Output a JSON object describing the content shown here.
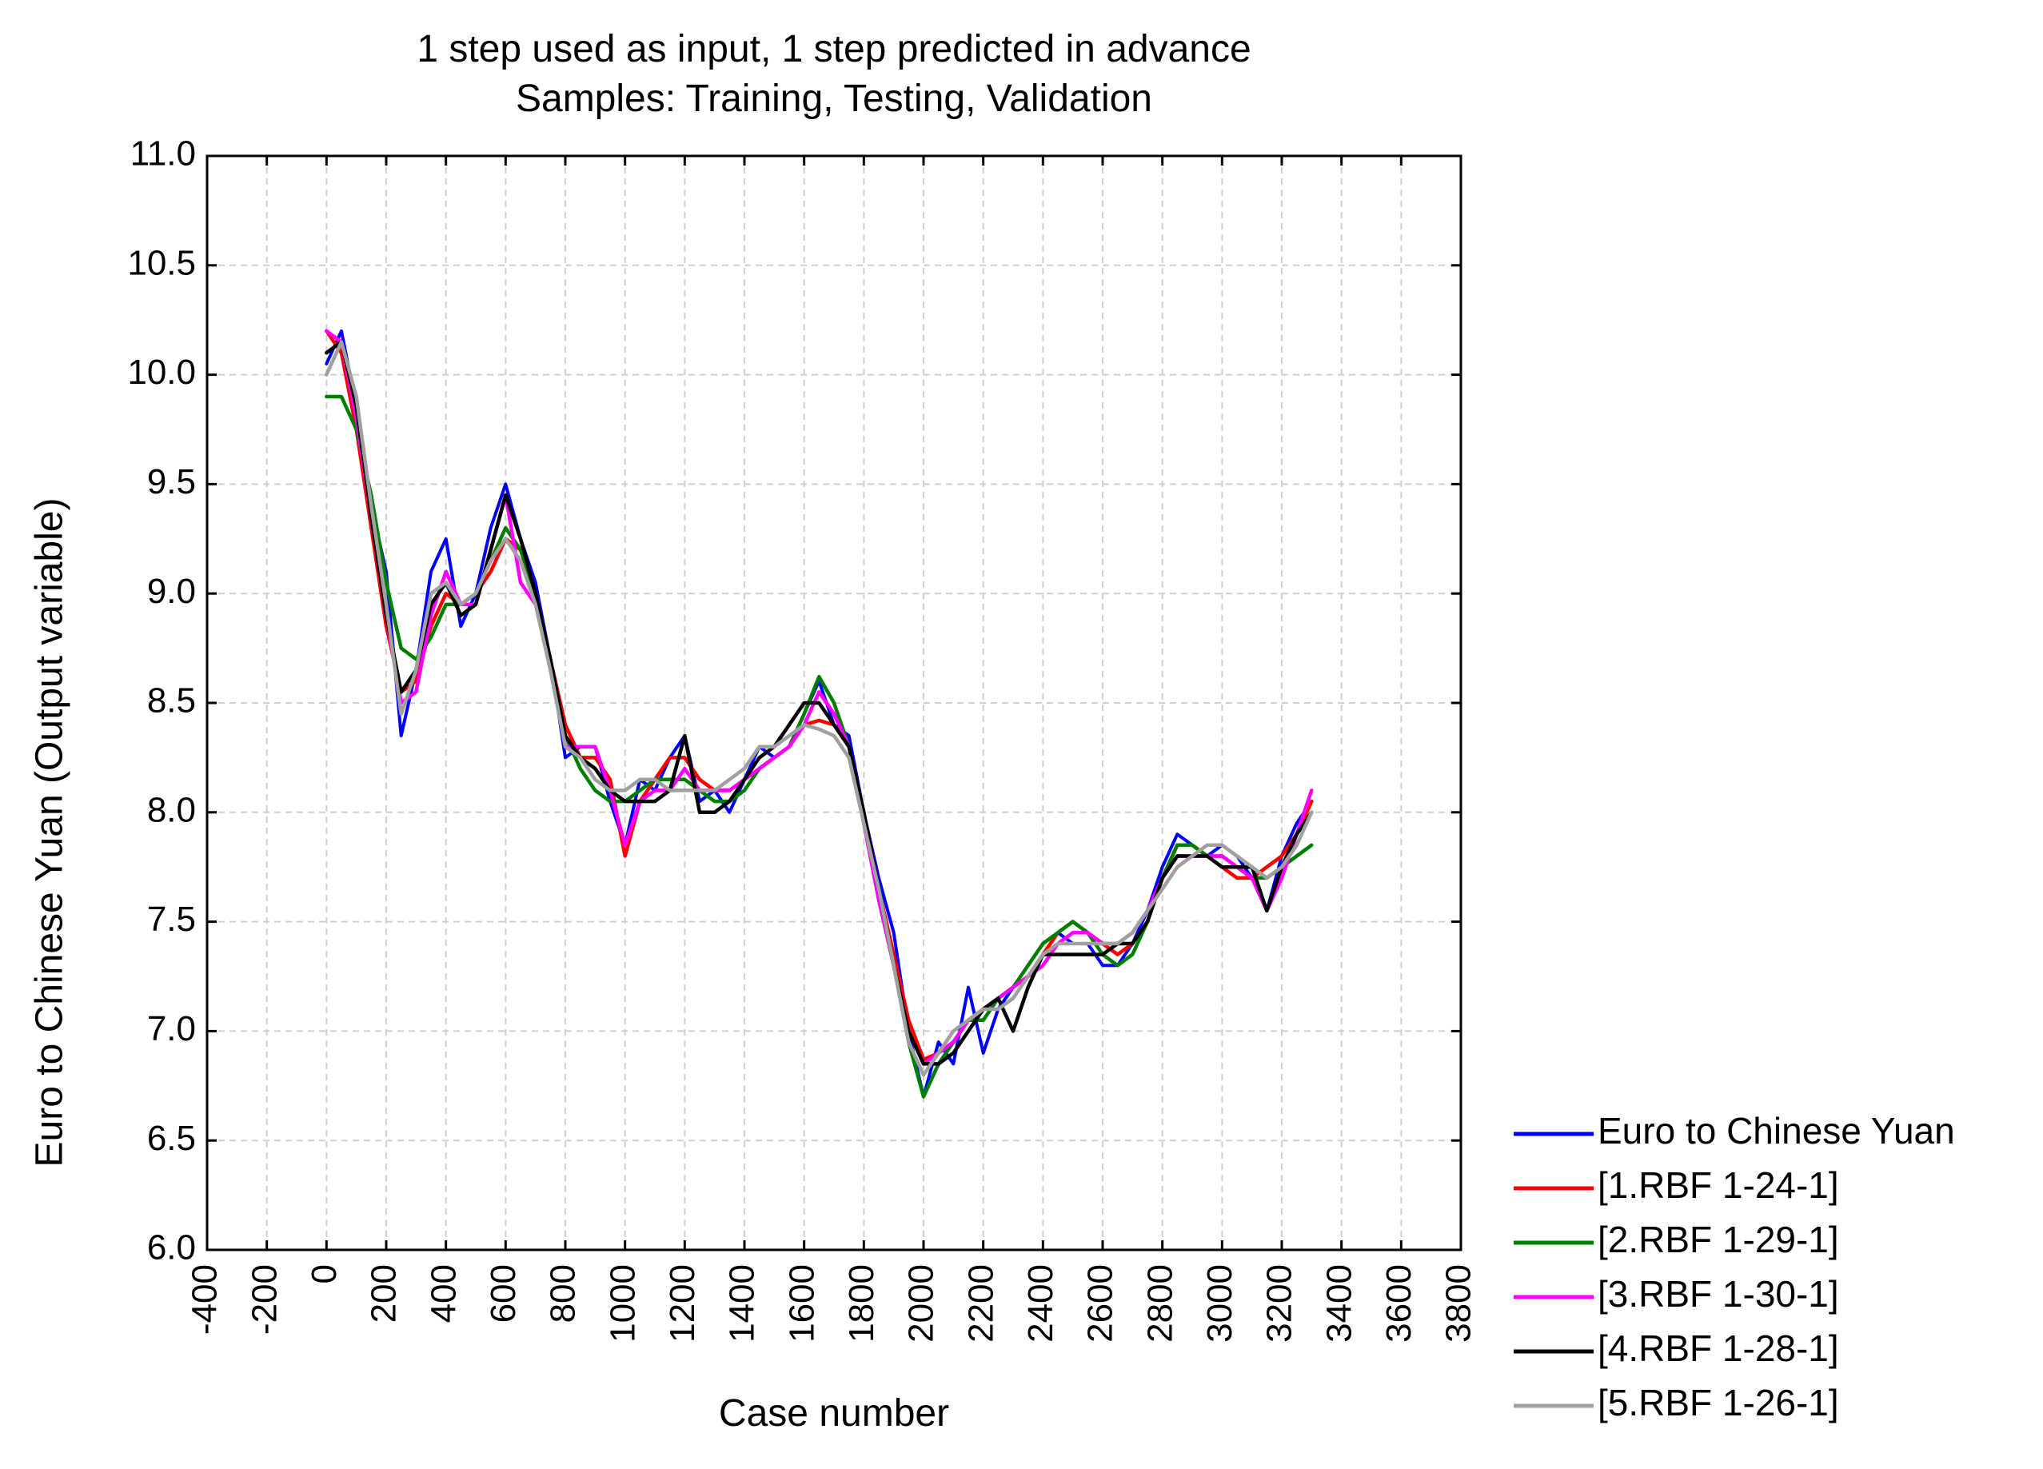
{
  "chart_data": {
    "type": "line",
    "title": "1 step used as input, 1 step predicted in advance",
    "subtitle": "Samples: Training, Testing, Validation",
    "xlabel": "Case number",
    "ylabel": "Euro to Chinese Yuan (Output variable)",
    "xlim": [
      -400,
      3800
    ],
    "ylim": [
      6.0,
      11.0
    ],
    "xticks": [
      "-400",
      "-200",
      "0",
      "200",
      "400",
      "600",
      "800",
      "1000",
      "1200",
      "1400",
      "1600",
      "1800",
      "2000",
      "2200",
      "2400",
      "2600",
      "2800",
      "3000",
      "3200",
      "3400",
      "3600",
      "3800"
    ],
    "yticks": [
      "6.0",
      "6.5",
      "7.0",
      "7.5",
      "8.0",
      "8.5",
      "9.0",
      "9.5",
      "10.0",
      "10.5",
      "11.0"
    ],
    "grid": true,
    "legend_position": "bottom-right, outside plot",
    "series": [
      {
        "name": "Euro to Chinese Yuan",
        "color": "#0000ff",
        "x": [
          0,
          50,
          100,
          150,
          200,
          250,
          300,
          350,
          400,
          450,
          500,
          550,
          600,
          650,
          700,
          750,
          800,
          850,
          900,
          950,
          1000,
          1050,
          1100,
          1150,
          1200,
          1250,
          1300,
          1350,
          1400,
          1450,
          1500,
          1550,
          1600,
          1650,
          1700,
          1750,
          1800,
          1850,
          1900,
          1950,
          2000,
          2050,
          2100,
          2150,
          2200,
          2250,
          2300,
          2350,
          2400,
          2450,
          2500,
          2550,
          2600,
          2650,
          2700,
          2750,
          2800,
          2850,
          2900,
          2950,
          3000,
          3050,
          3100,
          3150,
          3200,
          3250,
          3300
        ],
        "values": [
          10.05,
          10.2,
          9.85,
          9.4,
          9.1,
          8.35,
          8.65,
          9.1,
          9.25,
          8.85,
          9.0,
          9.3,
          9.5,
          9.25,
          9.05,
          8.7,
          8.25,
          8.3,
          8.3,
          8.05,
          7.85,
          8.15,
          8.1,
          8.25,
          8.35,
          8.05,
          8.1,
          8.0,
          8.15,
          8.3,
          8.25,
          8.3,
          8.45,
          8.6,
          8.4,
          8.35,
          8.0,
          7.7,
          7.45,
          7.0,
          6.7,
          6.95,
          6.85,
          7.2,
          6.9,
          7.1,
          7.2,
          7.3,
          7.4,
          7.45,
          7.4,
          7.4,
          7.3,
          7.3,
          7.4,
          7.55,
          7.75,
          7.9,
          7.85,
          7.8,
          7.85,
          7.8,
          7.7,
          7.55,
          7.8,
          7.95,
          8.05
        ]
      },
      {
        "name": "[1.RBF 1-24-1]",
        "color": "#ff0000",
        "x": [
          0,
          50,
          100,
          150,
          200,
          250,
          300,
          350,
          400,
          450,
          500,
          550,
          600,
          650,
          700,
          750,
          800,
          850,
          900,
          950,
          1000,
          1050,
          1100,
          1150,
          1200,
          1250,
          1300,
          1350,
          1400,
          1450,
          1500,
          1550,
          1600,
          1650,
          1700,
          1750,
          1800,
          1850,
          1900,
          1950,
          2000,
          2050,
          2100,
          2150,
          2200,
          2250,
          2300,
          2350,
          2400,
          2450,
          2500,
          2550,
          2600,
          2650,
          2700,
          2750,
          2800,
          2850,
          2900,
          2950,
          3000,
          3050,
          3100,
          3150,
          3200,
          3250,
          3300
        ],
        "values": [
          10.2,
          10.1,
          9.75,
          9.3,
          8.85,
          8.55,
          8.6,
          8.85,
          9.0,
          8.95,
          9.0,
          9.1,
          9.25,
          9.2,
          9.0,
          8.7,
          8.4,
          8.25,
          8.25,
          8.15,
          7.8,
          8.05,
          8.15,
          8.25,
          8.25,
          8.15,
          8.1,
          8.1,
          8.15,
          8.2,
          8.25,
          8.3,
          8.4,
          8.42,
          8.4,
          8.3,
          8.0,
          7.65,
          7.35,
          7.05,
          6.87,
          6.9,
          6.95,
          7.05,
          7.1,
          7.15,
          7.2,
          7.25,
          7.35,
          7.45,
          7.5,
          7.45,
          7.4,
          7.35,
          7.4,
          7.5,
          7.7,
          7.85,
          7.85,
          7.8,
          7.75,
          7.7,
          7.7,
          7.75,
          7.8,
          7.9,
          8.05
        ]
      },
      {
        "name": "[2.RBF 1-29-1]",
        "color": "#008000",
        "x": [
          0,
          50,
          100,
          150,
          200,
          250,
          300,
          350,
          400,
          450,
          500,
          550,
          600,
          650,
          700,
          750,
          800,
          850,
          900,
          950,
          1000,
          1050,
          1100,
          1150,
          1200,
          1250,
          1300,
          1350,
          1400,
          1450,
          1500,
          1550,
          1600,
          1650,
          1700,
          1750,
          1800,
          1850,
          1900,
          1950,
          2000,
          2050,
          2100,
          2150,
          2200,
          2250,
          2300,
          2350,
          2400,
          2450,
          2500,
          2550,
          2600,
          2650,
          2700,
          2750,
          2800,
          2850,
          2900,
          2950,
          3000,
          3050,
          3100,
          3150,
          3200,
          3250,
          3300
        ],
        "values": [
          9.9,
          9.9,
          9.75,
          9.45,
          9.05,
          8.75,
          8.7,
          8.8,
          8.95,
          8.95,
          9.0,
          9.15,
          9.3,
          9.2,
          9.0,
          8.7,
          8.35,
          8.2,
          8.1,
          8.05,
          8.05,
          8.1,
          8.15,
          8.15,
          8.15,
          8.1,
          8.05,
          8.05,
          8.1,
          8.2,
          8.25,
          8.3,
          8.45,
          8.62,
          8.5,
          8.3,
          7.95,
          7.6,
          7.3,
          6.95,
          6.7,
          6.85,
          6.95,
          7.05,
          7.05,
          7.15,
          7.2,
          7.3,
          7.4,
          7.45,
          7.5,
          7.45,
          7.35,
          7.3,
          7.35,
          7.5,
          7.7,
          7.85,
          7.85,
          7.8,
          7.8,
          7.75,
          7.7,
          7.7,
          7.75,
          7.8,
          7.85
        ]
      },
      {
        "name": "[3.RBF 1-30-1]",
        "color": "#ff00ff",
        "x": [
          0,
          50,
          100,
          150,
          200,
          250,
          300,
          350,
          400,
          450,
          500,
          550,
          600,
          650,
          700,
          750,
          800,
          850,
          900,
          950,
          1000,
          1050,
          1100,
          1150,
          1200,
          1250,
          1300,
          1350,
          1400,
          1450,
          1500,
          1550,
          1600,
          1650,
          1700,
          1750,
          1800,
          1850,
          1900,
          1950,
          2000,
          2050,
          2100,
          2150,
          2200,
          2250,
          2300,
          2350,
          2400,
          2450,
          2500,
          2550,
          2600,
          2650,
          2700,
          2750,
          2800,
          2850,
          2900,
          2950,
          3000,
          3050,
          3100,
          3150,
          3200,
          3250,
          3300
        ],
        "values": [
          10.2,
          10.15,
          9.8,
          9.35,
          8.9,
          8.5,
          8.55,
          8.9,
          9.1,
          8.95,
          8.95,
          9.2,
          9.45,
          9.05,
          8.95,
          8.7,
          8.3,
          8.3,
          8.3,
          8.1,
          7.85,
          8.05,
          8.1,
          8.1,
          8.2,
          8.1,
          8.1,
          8.1,
          8.15,
          8.2,
          8.25,
          8.3,
          8.4,
          8.55,
          8.45,
          8.3,
          7.95,
          7.6,
          7.3,
          7.0,
          6.85,
          6.9,
          6.95,
          7.05,
          7.1,
          7.15,
          7.2,
          7.25,
          7.3,
          7.4,
          7.45,
          7.45,
          7.4,
          7.4,
          7.45,
          7.55,
          7.7,
          7.8,
          7.8,
          7.8,
          7.8,
          7.75,
          7.7,
          7.55,
          7.7,
          7.9,
          8.1
        ]
      },
      {
        "name": "[4.RBF 1-28-1]",
        "color": "#000000",
        "x": [
          0,
          50,
          100,
          150,
          200,
          250,
          300,
          350,
          400,
          450,
          500,
          550,
          600,
          650,
          700,
          750,
          800,
          850,
          900,
          950,
          1000,
          1050,
          1100,
          1150,
          1200,
          1250,
          1300,
          1350,
          1400,
          1450,
          1500,
          1550,
          1600,
          1650,
          1700,
          1750,
          1800,
          1850,
          1900,
          1950,
          2000,
          2050,
          2100,
          2150,
          2200,
          2250,
          2300,
          2350,
          2400,
          2450,
          2500,
          2550,
          2600,
          2650,
          2700,
          2750,
          2800,
          2850,
          2900,
          2950,
          3000,
          3050,
          3100,
          3150,
          3200,
          3250,
          3300
        ],
        "values": [
          10.1,
          10.15,
          9.85,
          9.35,
          8.9,
          8.55,
          8.65,
          8.95,
          9.05,
          8.9,
          8.95,
          9.2,
          9.45,
          9.25,
          9.0,
          8.7,
          8.35,
          8.25,
          8.2,
          8.1,
          8.05,
          8.05,
          8.05,
          8.1,
          8.35,
          8.0,
          8.0,
          8.05,
          8.15,
          8.25,
          8.3,
          8.4,
          8.5,
          8.5,
          8.4,
          8.3,
          8.0,
          7.65,
          7.3,
          7.0,
          6.85,
          6.85,
          6.9,
          7.0,
          7.1,
          7.15,
          7.0,
          7.2,
          7.35,
          7.35,
          7.35,
          7.35,
          7.35,
          7.4,
          7.4,
          7.5,
          7.7,
          7.8,
          7.8,
          7.8,
          7.75,
          7.75,
          7.75,
          7.55,
          7.75,
          7.9,
          8.0
        ]
      },
      {
        "name": "[5.RBF 1-26-1]",
        "color": "#a0a0a0",
        "x": [
          0,
          50,
          100,
          150,
          200,
          250,
          300,
          350,
          400,
          450,
          500,
          550,
          600,
          650,
          700,
          750,
          800,
          850,
          900,
          950,
          1000,
          1050,
          1100,
          1150,
          1200,
          1250,
          1300,
          1350,
          1400,
          1450,
          1500,
          1550,
          1600,
          1650,
          1700,
          1750,
          1800,
          1850,
          1900,
          1950,
          2000,
          2050,
          2100,
          2150,
          2200,
          2250,
          2300,
          2350,
          2400,
          2450,
          2500,
          2550,
          2600,
          2650,
          2700,
          2750,
          2800,
          2850,
          2900,
          2950,
          3000,
          3050,
          3100,
          3150,
          3200,
          3250,
          3300
        ],
        "values": [
          10.0,
          10.15,
          9.9,
          9.4,
          8.95,
          8.45,
          8.65,
          9.0,
          9.05,
          8.95,
          9.0,
          9.15,
          9.25,
          9.15,
          8.95,
          8.65,
          8.3,
          8.25,
          8.15,
          8.1,
          8.1,
          8.15,
          8.15,
          8.1,
          8.1,
          8.1,
          8.1,
          8.15,
          8.2,
          8.3,
          8.3,
          8.35,
          8.4,
          8.38,
          8.35,
          8.25,
          7.95,
          7.65,
          7.3,
          6.95,
          6.8,
          6.9,
          7.0,
          7.05,
          7.1,
          7.1,
          7.15,
          7.25,
          7.35,
          7.4,
          7.4,
          7.4,
          7.4,
          7.4,
          7.45,
          7.55,
          7.65,
          7.75,
          7.8,
          7.85,
          7.85,
          7.8,
          7.75,
          7.7,
          7.75,
          7.85,
          8.0
        ]
      }
    ]
  }
}
